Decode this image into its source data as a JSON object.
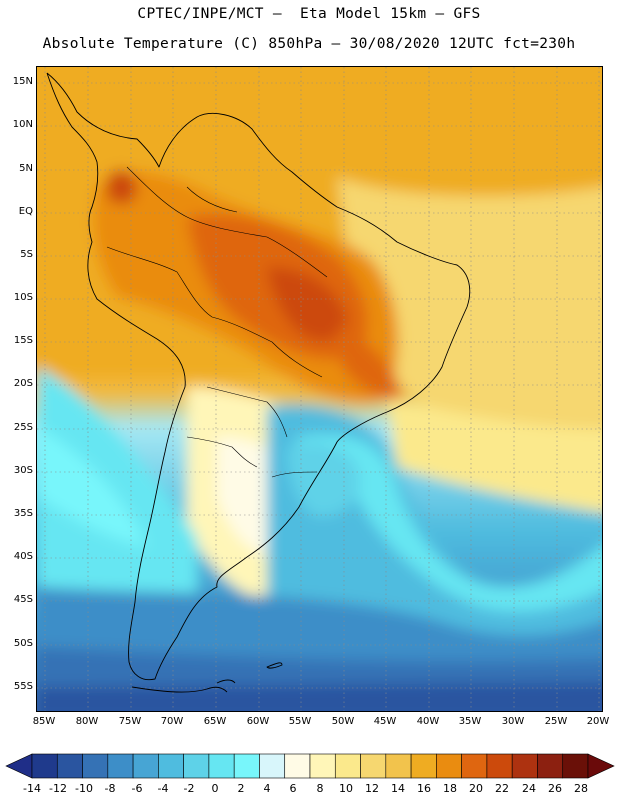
{
  "header": {
    "line1": "CPTEC/INPE/MCT –  Eta Model 15km – GFS",
    "line2": "Absolute Temperature (C) 850hPa – 30/08/2020 12UTC fct=230h"
  },
  "axes": {
    "lat_labels": [
      "15N",
      "10N",
      "5N",
      "EQ",
      "5S",
      "10S",
      "15S",
      "20S",
      "25S",
      "30S",
      "35S",
      "40S",
      "45S",
      "50S",
      "55S"
    ],
    "lon_labels": [
      "85W",
      "80W",
      "75W",
      "70W",
      "65W",
      "60W",
      "55W",
      "50W",
      "45W",
      "40W",
      "35W",
      "30W",
      "25W",
      "20W"
    ]
  },
  "colorbar": {
    "labels": [
      "-14",
      "-12",
      "-10",
      "-8",
      "-6",
      "-4",
      "-2",
      "0",
      "2",
      "4",
      "6",
      "8",
      "10",
      "12",
      "14",
      "16",
      "18",
      "20",
      "22",
      "24",
      "26",
      "28"
    ],
    "colors": [
      "#1f3a8c",
      "#2a55a0",
      "#3572b5",
      "#3d8ec8",
      "#47a5d4",
      "#4fbcdf",
      "#5ed2e8",
      "#66e6f2",
      "#78f6fb",
      "#d8f6fb",
      "#fffbe6",
      "#fff6b8",
      "#fbe98c",
      "#f6d770",
      "#f2c34c",
      "#efac22",
      "#ea8c10",
      "#df6610",
      "#cc4a0c",
      "#ad3210",
      "#8c2010",
      "#6a1008"
    ],
    "low_color": "#1f2e88",
    "high_color": "#6a0a0a"
  }
}
